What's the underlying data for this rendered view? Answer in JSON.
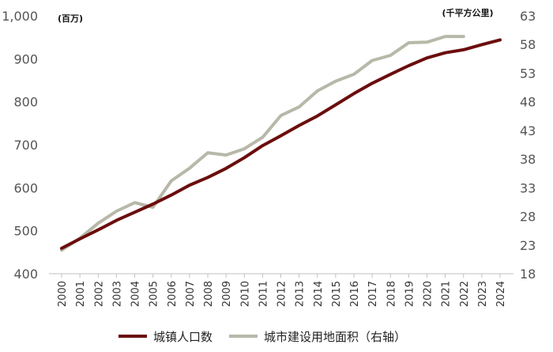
{
  "chart_data": {
    "type": "line",
    "categories": [
      "2000",
      "2001",
      "2002",
      "2003",
      "2004",
      "2005",
      "2006",
      "2007",
      "2008",
      "2009",
      "2010",
      "2011",
      "2012",
      "2013",
      "2014",
      "2015",
      "2016",
      "2017",
      "2018",
      "2019",
      "2020",
      "2021",
      "2022",
      "2023",
      "2024"
    ],
    "left_axis": {
      "unit_label": "(百万)",
      "ylim": [
        400,
        1000
      ],
      "ticks": [
        "400",
        "500",
        "600",
        "700",
        "800",
        "900",
        "1,000"
      ]
    },
    "right_axis": {
      "unit_label": "(千平方公里)",
      "ylim": [
        18,
        63
      ],
      "ticks": [
        "18",
        "23",
        "28",
        "33",
        "38",
        "43",
        "48",
        "53",
        "58",
        "63"
      ]
    },
    "series": [
      {
        "name": "城镇人口数",
        "axis": "left",
        "color": "#6b0d0d",
        "values": [
          459,
          481,
          502,
          524,
          543,
          562,
          583,
          606,
          624,
          645,
          670,
          698,
          721,
          745,
          767,
          793,
          819,
          843,
          864,
          884,
          902,
          914,
          921,
          933,
          944
        ]
      },
      {
        "name": "城市建设用地面积（右轴）",
        "axis": "right",
        "color": "#b7b8a8",
        "values": [
          22.1,
          24.2,
          26.8,
          28.9,
          30.4,
          29.6,
          34.2,
          36.4,
          39.1,
          38.7,
          39.8,
          41.8,
          45.6,
          47.1,
          49.9,
          51.6,
          52.8,
          55.2,
          56.1,
          58.3,
          58.4,
          59.4,
          59.4,
          null,
          null
        ]
      }
    ],
    "legend": {
      "placement": "bottom",
      "items": [
        "城镇人口数",
        "城市建设用地面积（右轴）"
      ]
    },
    "grid": false
  }
}
